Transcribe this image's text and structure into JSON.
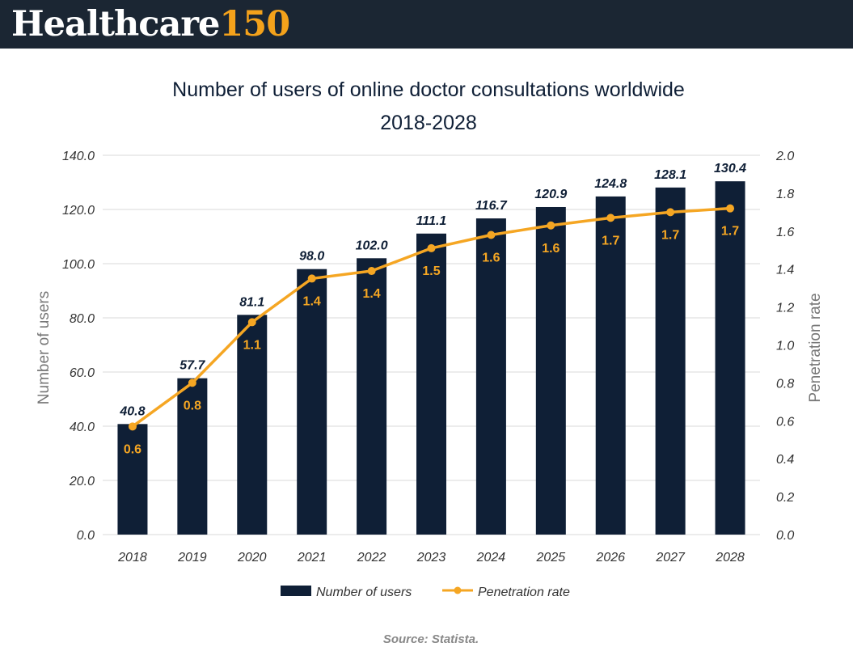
{
  "brand": {
    "name_part1": "Healthcare",
    "name_part2": "150"
  },
  "colors": {
    "header_bg": "#1b2633",
    "bar": "#0f1f36",
    "line": "#f5a623",
    "text_dark": "#0f1f36",
    "axis_text": "#333333",
    "axis_title": "#777777"
  },
  "source": "Source: Statista.",
  "chart_data": {
    "type": "bar",
    "title_line1": "Number of users of online doctor consultations worldwide",
    "title_line2": "2018-2028",
    "categories": [
      "2018",
      "2019",
      "2020",
      "2021",
      "2022",
      "2023",
      "2024",
      "2025",
      "2026",
      "2027",
      "2028"
    ],
    "series": [
      {
        "name": "Number of users",
        "type": "bar",
        "axis": "left",
        "values": [
          40.8,
          57.7,
          81.1,
          98.0,
          102.0,
          111.1,
          116.7,
          120.9,
          124.8,
          128.1,
          130.4
        ],
        "labels": [
          "40.8",
          "57.7",
          "81.1",
          "98.0",
          "102.0",
          "111.1",
          "116.7",
          "120.9",
          "124.8",
          "128.1",
          "130.4"
        ]
      },
      {
        "name": "Penetration rate",
        "type": "line",
        "axis": "right",
        "values": [
          0.57,
          0.8,
          1.12,
          1.35,
          1.39,
          1.51,
          1.58,
          1.63,
          1.67,
          1.7,
          1.72
        ],
        "labels": [
          "0.6",
          "0.8",
          "1.1",
          "1.4",
          "1.4",
          "1.5",
          "1.6",
          "1.6",
          "1.7",
          "1.7",
          "1.7"
        ]
      }
    ],
    "ylabel": "Number of users",
    "y2label": "Penetration rate",
    "ylim": [
      0,
      140
    ],
    "y2lim": [
      0,
      2.0
    ],
    "yticks": [
      "0.0",
      "20.0",
      "40.0",
      "60.0",
      "80.0",
      "100.0",
      "120.0",
      "140.0"
    ],
    "y2ticks": [
      "0.0",
      "0.2",
      "0.4",
      "0.6",
      "0.8",
      "1.0",
      "1.2",
      "1.4",
      "1.6",
      "1.8",
      "2.0"
    ],
    "grid": true,
    "legend": "bottom"
  }
}
